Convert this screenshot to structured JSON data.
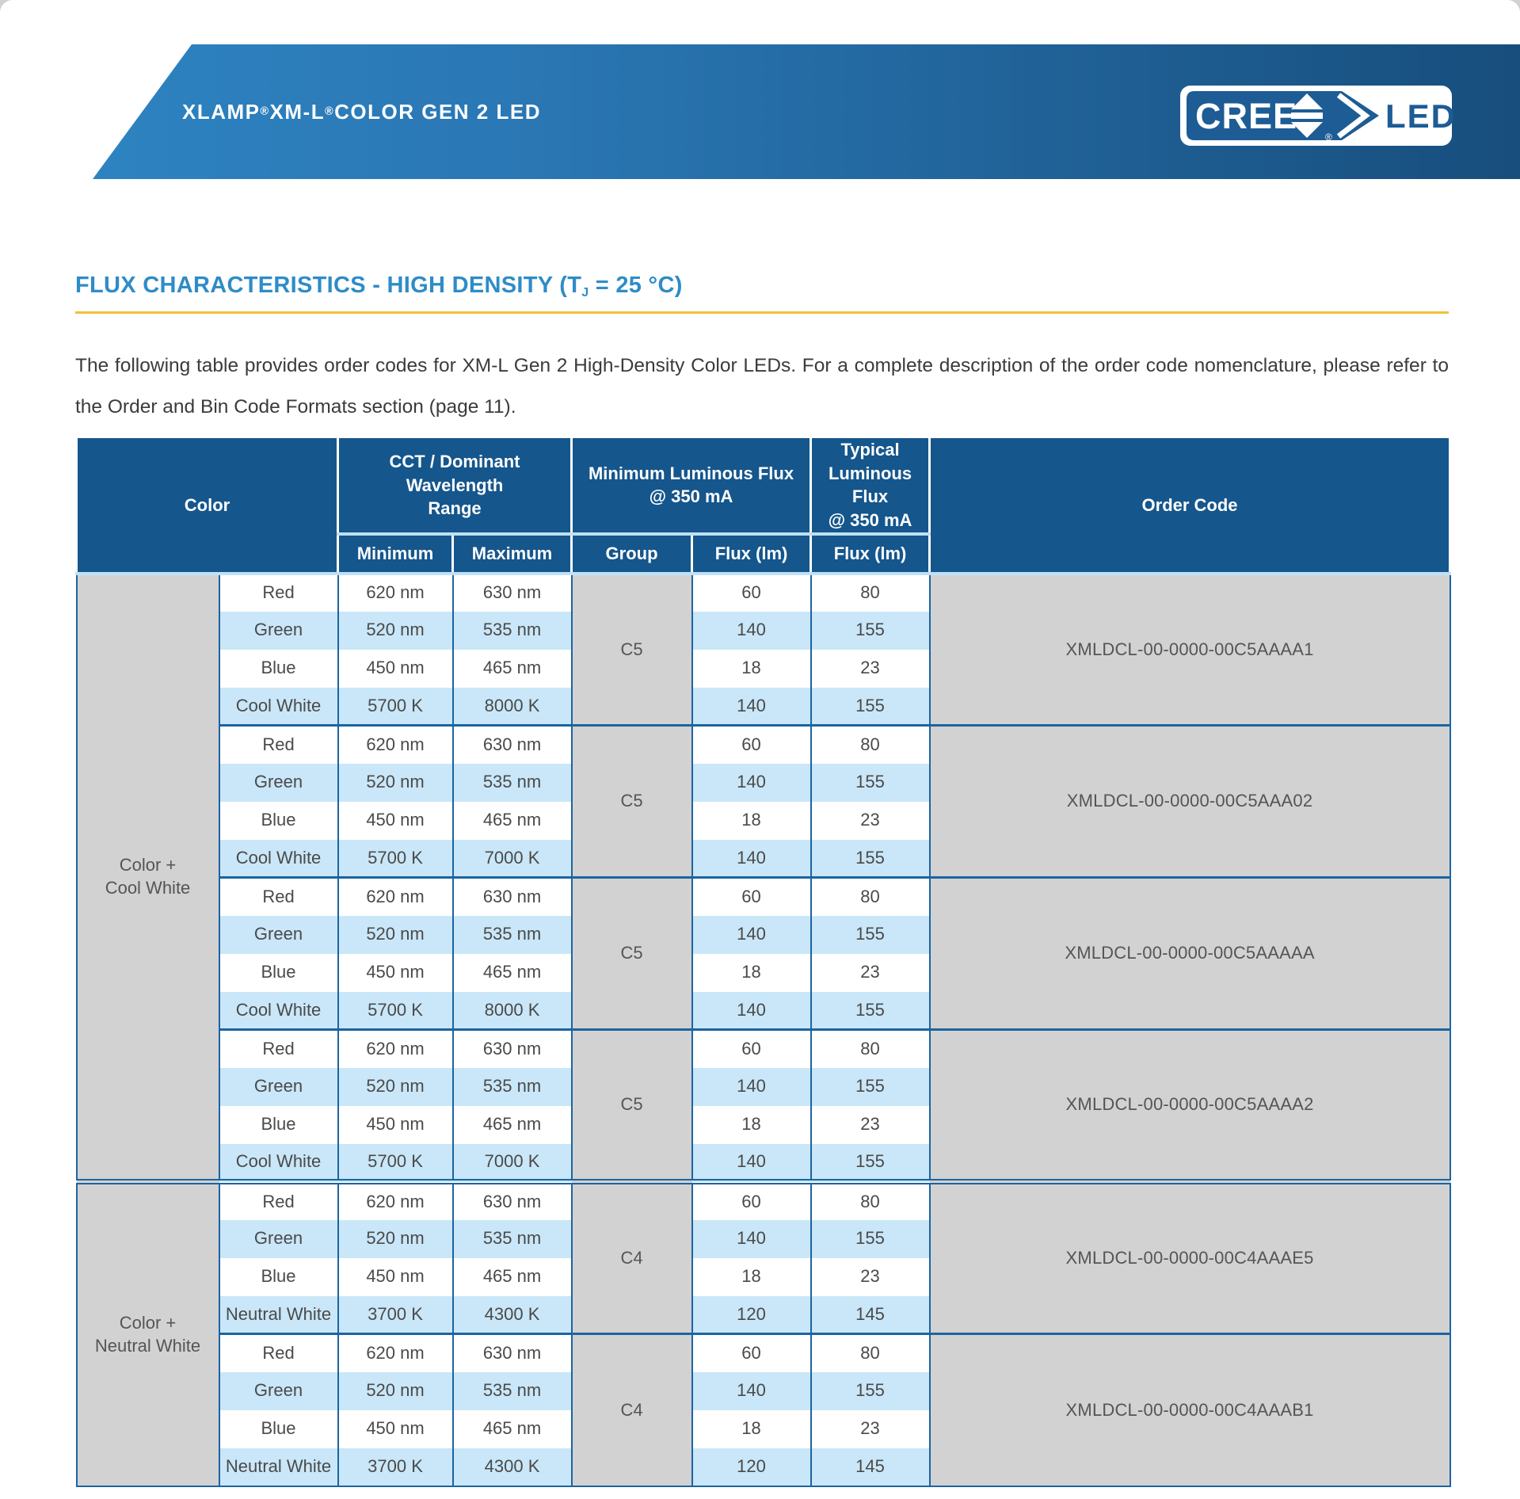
{
  "banner": {
    "product": {
      "t1": "XLAMP",
      "r1": "®",
      "t2": " XM-L",
      "r2": "®",
      "t3": " COLOR GEN 2 LED"
    },
    "logo": {
      "brand": "CREE",
      "sub": "LED",
      "reg": "®"
    }
  },
  "section": {
    "title_prefix": "FLUX CHARACTERISTICS - HIGH DENSITY (T",
    "title_sub": "J",
    "title_suffix": " = 25 °C)"
  },
  "intro": "The following table provides order codes for XM-L Gen 2 High-Density Color LEDs. For a complete description of the order code nomenclature, please refer to the Order and Bin Code Formats section (page 11).",
  "table": {
    "header": {
      "color": "Color",
      "cct": "CCT / Dominant Wavelength\nRange",
      "min_flux": "Minimum Luminous Flux\n@ 350 mA",
      "typ_flux": "Typical\nLuminous Flux\n@ 350 mA",
      "order_code": "Order Code",
      "sub": [
        "Minimum",
        "Maximum",
        "Group",
        "Flux (lm)",
        "Flux (lm)"
      ]
    },
    "sections": [
      {
        "label": "Color +\nCool White",
        "groups": [
          {
            "group": "C5",
            "order_code": "XMLDCL-00-0000-00C5AAAA1",
            "rows": [
              {
                "color": "Red",
                "min": "620 nm",
                "max": "630 nm",
                "min_flux": "60",
                "typ_flux": "80"
              },
              {
                "color": "Green",
                "min": "520 nm",
                "max": "535 nm",
                "min_flux": "140",
                "typ_flux": "155"
              },
              {
                "color": "Blue",
                "min": "450 nm",
                "max": "465 nm",
                "min_flux": "18",
                "typ_flux": "23"
              },
              {
                "color": "Cool White",
                "min": "5700 K",
                "max": "8000 K",
                "min_flux": "140",
                "typ_flux": "155"
              }
            ]
          },
          {
            "group": "C5",
            "order_code": "XMLDCL-00-0000-00C5AAA02",
            "rows": [
              {
                "color": "Red",
                "min": "620 nm",
                "max": "630 nm",
                "min_flux": "60",
                "typ_flux": "80"
              },
              {
                "color": "Green",
                "min": "520 nm",
                "max": "535 nm",
                "min_flux": "140",
                "typ_flux": "155"
              },
              {
                "color": "Blue",
                "min": "450 nm",
                "max": "465 nm",
                "min_flux": "18",
                "typ_flux": "23"
              },
              {
                "color": "Cool White",
                "min": "5700 K",
                "max": "7000 K",
                "min_flux": "140",
                "typ_flux": "155"
              }
            ]
          },
          {
            "group": "C5",
            "order_code": "XMLDCL-00-0000-00C5AAAAA",
            "rows": [
              {
                "color": "Red",
                "min": "620 nm",
                "max": "630 nm",
                "min_flux": "60",
                "typ_flux": "80"
              },
              {
                "color": "Green",
                "min": "520 nm",
                "max": "535 nm",
                "min_flux": "140",
                "typ_flux": "155"
              },
              {
                "color": "Blue",
                "min": "450 nm",
                "max": "465 nm",
                "min_flux": "18",
                "typ_flux": "23"
              },
              {
                "color": "Cool White",
                "min": "5700 K",
                "max": "8000 K",
                "min_flux": "140",
                "typ_flux": "155"
              }
            ]
          },
          {
            "group": "C5",
            "order_code": "XMLDCL-00-0000-00C5AAAA2",
            "rows": [
              {
                "color": "Red",
                "min": "620 nm",
                "max": "630 nm",
                "min_flux": "60",
                "typ_flux": "80"
              },
              {
                "color": "Green",
                "min": "520 nm",
                "max": "535 nm",
                "min_flux": "140",
                "typ_flux": "155"
              },
              {
                "color": "Blue",
                "min": "450 nm",
                "max": "465 nm",
                "min_flux": "18",
                "typ_flux": "23"
              },
              {
                "color": "Cool White",
                "min": "5700 K",
                "max": "7000 K",
                "min_flux": "140",
                "typ_flux": "155"
              }
            ]
          }
        ]
      },
      {
        "label": "Color +\nNeutral White",
        "groups": [
          {
            "group": "C4",
            "order_code": "XMLDCL-00-0000-00C4AAAE5",
            "rows": [
              {
                "color": "Red",
                "min": "620 nm",
                "max": "630 nm",
                "min_flux": "60",
                "typ_flux": "80"
              },
              {
                "color": "Green",
                "min": "520 nm",
                "max": "535 nm",
                "min_flux": "140",
                "typ_flux": "155"
              },
              {
                "color": "Blue",
                "min": "450 nm",
                "max": "465 nm",
                "min_flux": "18",
                "typ_flux": "23"
              },
              {
                "color": "Neutral White",
                "min": "3700 K",
                "max": "4300 K",
                "min_flux": "120",
                "typ_flux": "145"
              }
            ]
          },
          {
            "group": "C4",
            "order_code": "XMLDCL-00-0000-00C4AAAB1",
            "rows": [
              {
                "color": "Red",
                "min": "620 nm",
                "max": "630 nm",
                "min_flux": "60",
                "typ_flux": "80"
              },
              {
                "color": "Green",
                "min": "520 nm",
                "max": "535 nm",
                "min_flux": "140",
                "typ_flux": "155"
              },
              {
                "color": "Blue",
                "min": "450 nm",
                "max": "465 nm",
                "min_flux": "18",
                "typ_flux": "23"
              },
              {
                "color": "Neutral White",
                "min": "3700 K",
                "max": "4300 K",
                "min_flux": "120",
                "typ_flux": "145"
              }
            ]
          }
        ]
      }
    ]
  },
  "colors": {
    "banner_left": "#2e85c3",
    "banner_right": "#174e7d",
    "logo_blue": "#1d5c95",
    "title_blue": "#2e8cc8",
    "rule_yellow": "#f1c13b",
    "header_blue": "#15568c",
    "stripe_blue": "#c9e7f8",
    "cell_gray": "#d2d2d2",
    "line_blue": "#1c64a0"
  }
}
